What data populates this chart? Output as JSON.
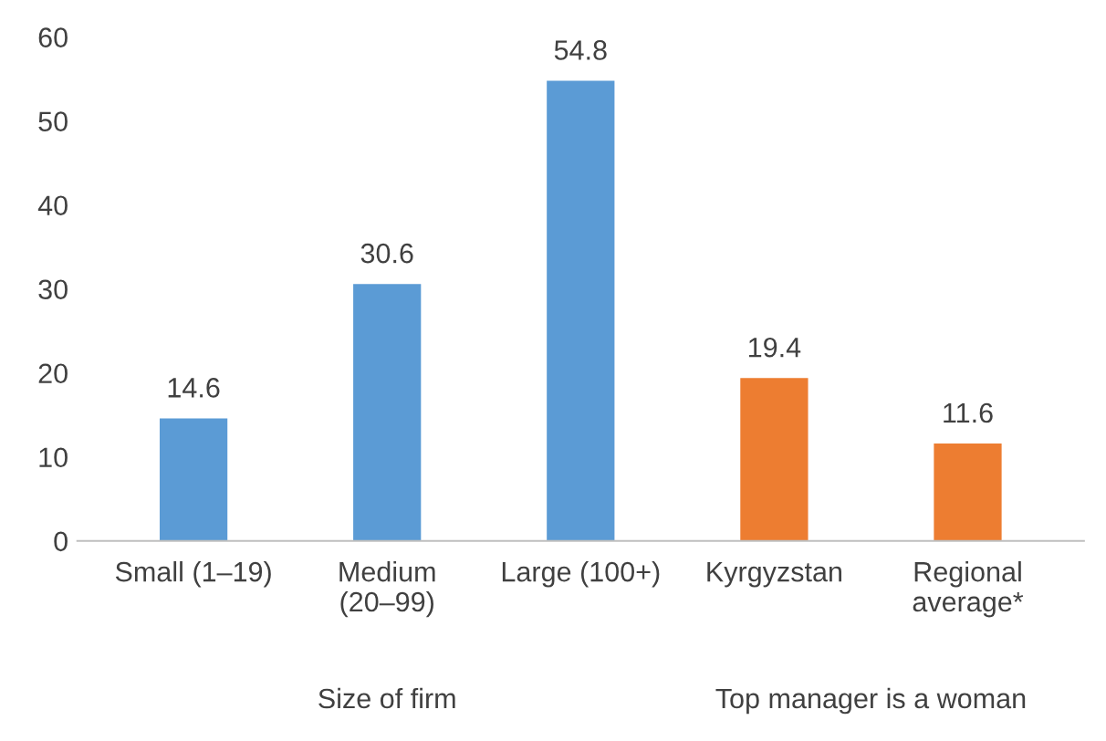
{
  "chart_data": {
    "type": "bar",
    "categories": [
      "Small (1–19)",
      "Medium\n(20–99)",
      "Large (100+)",
      "Kyrgyzstan",
      "Regional\naverage*"
    ],
    "values": [
      14.6,
      30.6,
      54.8,
      19.4,
      11.6
    ],
    "colors": [
      "#5b9bd5",
      "#5b9bd5",
      "#5b9bd5",
      "#ed7d31",
      "#ed7d31"
    ],
    "ylim": [
      0,
      60
    ],
    "yticks": [
      0,
      10,
      20,
      30,
      40,
      50,
      60
    ],
    "data_labels": true,
    "annotations": [
      "Size of firm",
      "Top manager is a woman"
    ]
  }
}
